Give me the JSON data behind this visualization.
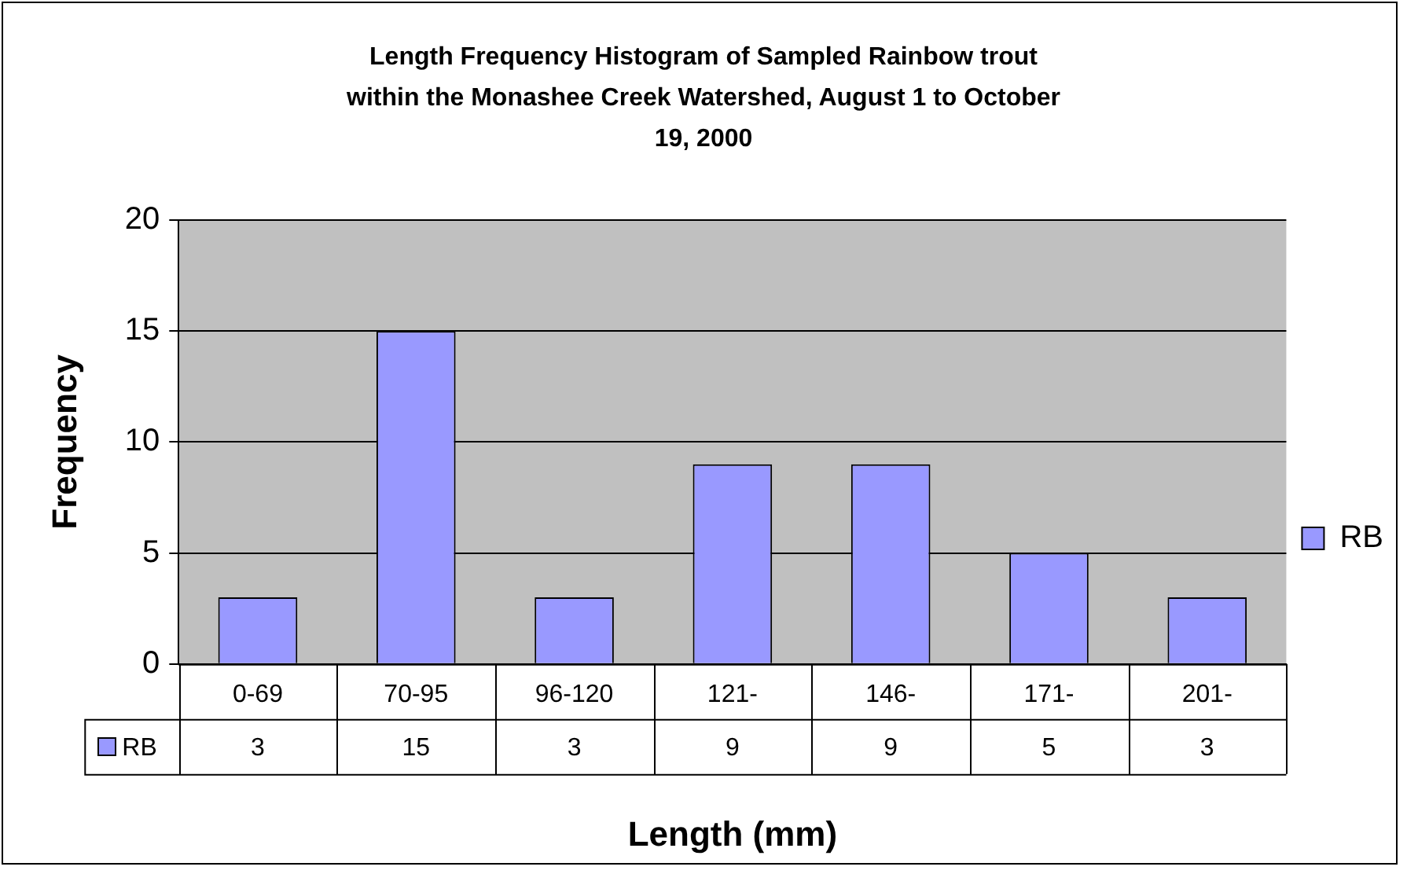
{
  "chart_data": {
    "type": "bar",
    "title": "Length Frequency Histogram of Sampled Rainbow trout within the Monashee Creek Watershed, August 1 to October 19, 2000",
    "xlabel": "Length (mm)",
    "ylabel": "Frequency",
    "categories": [
      "0-69",
      "70-95",
      "96-120",
      "121-",
      "146-",
      "171-",
      "201-"
    ],
    "series": [
      {
        "name": "RB",
        "color": "#9999ff",
        "values": [
          3,
          15,
          3,
          9,
          9,
          5,
          3
        ]
      }
    ],
    "ylim": [
      0,
      20
    ],
    "yticks": [
      0,
      5,
      10,
      15,
      20
    ],
    "grid": "y",
    "legend": "right",
    "data_labels": true
  }
}
